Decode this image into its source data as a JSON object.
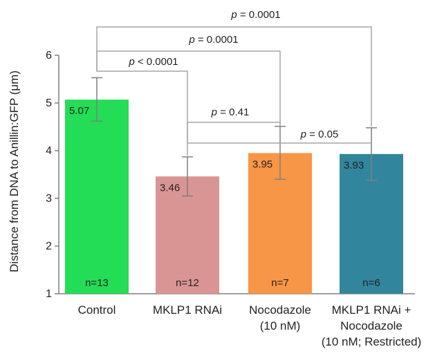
{
  "chart_data": {
    "type": "bar",
    "ylabel": "Distance from DNA to Anillin:GFP  (μm)",
    "ylim": [
      1,
      6
    ],
    "yticks": [
      "1",
      "2",
      "3",
      "4",
      "5",
      "6"
    ],
    "bars": [
      {
        "category": [
          "Control"
        ],
        "value": 5.07,
        "value_label": "5.07",
        "err_low": 4.62,
        "err_high": 5.53,
        "n_label": "n=13",
        "color": "#22dd55"
      },
      {
        "category": [
          "MKLP1 RNAi"
        ],
        "value": 3.46,
        "value_label": "3.46",
        "err_low": 3.05,
        "err_high": 3.87,
        "n_label": "n=12",
        "color": "#d99594"
      },
      {
        "category": [
          "Nocodazole",
          "(10 nM)"
        ],
        "value": 3.95,
        "value_label": "3.95",
        "err_low": 3.4,
        "err_high": 4.51,
        "n_label": "n=7",
        "color": "#f79646"
      },
      {
        "category": [
          "MKLP1 RNAi +",
          "Nocodazole",
          "(10 nM; Restricted)"
        ],
        "value": 3.93,
        "value_label": "3.93",
        "err_low": 3.38,
        "err_high": 4.48,
        "n_label": "n=6",
        "color": "#31859c"
      }
    ],
    "comparisons": [
      {
        "from": 0,
        "to": 3,
        "p": "0.0001",
        "op": "="
      },
      {
        "from": 0,
        "to": 2,
        "p": "0.0001",
        "op": "="
      },
      {
        "from": 0,
        "to": 1,
        "p": "0.0001",
        "op": "<"
      },
      {
        "from": 1,
        "to": 2,
        "p": "0.41",
        "op": "="
      },
      {
        "from": 1,
        "to": 3,
        "p": "0.05",
        "op": "="
      }
    ]
  }
}
